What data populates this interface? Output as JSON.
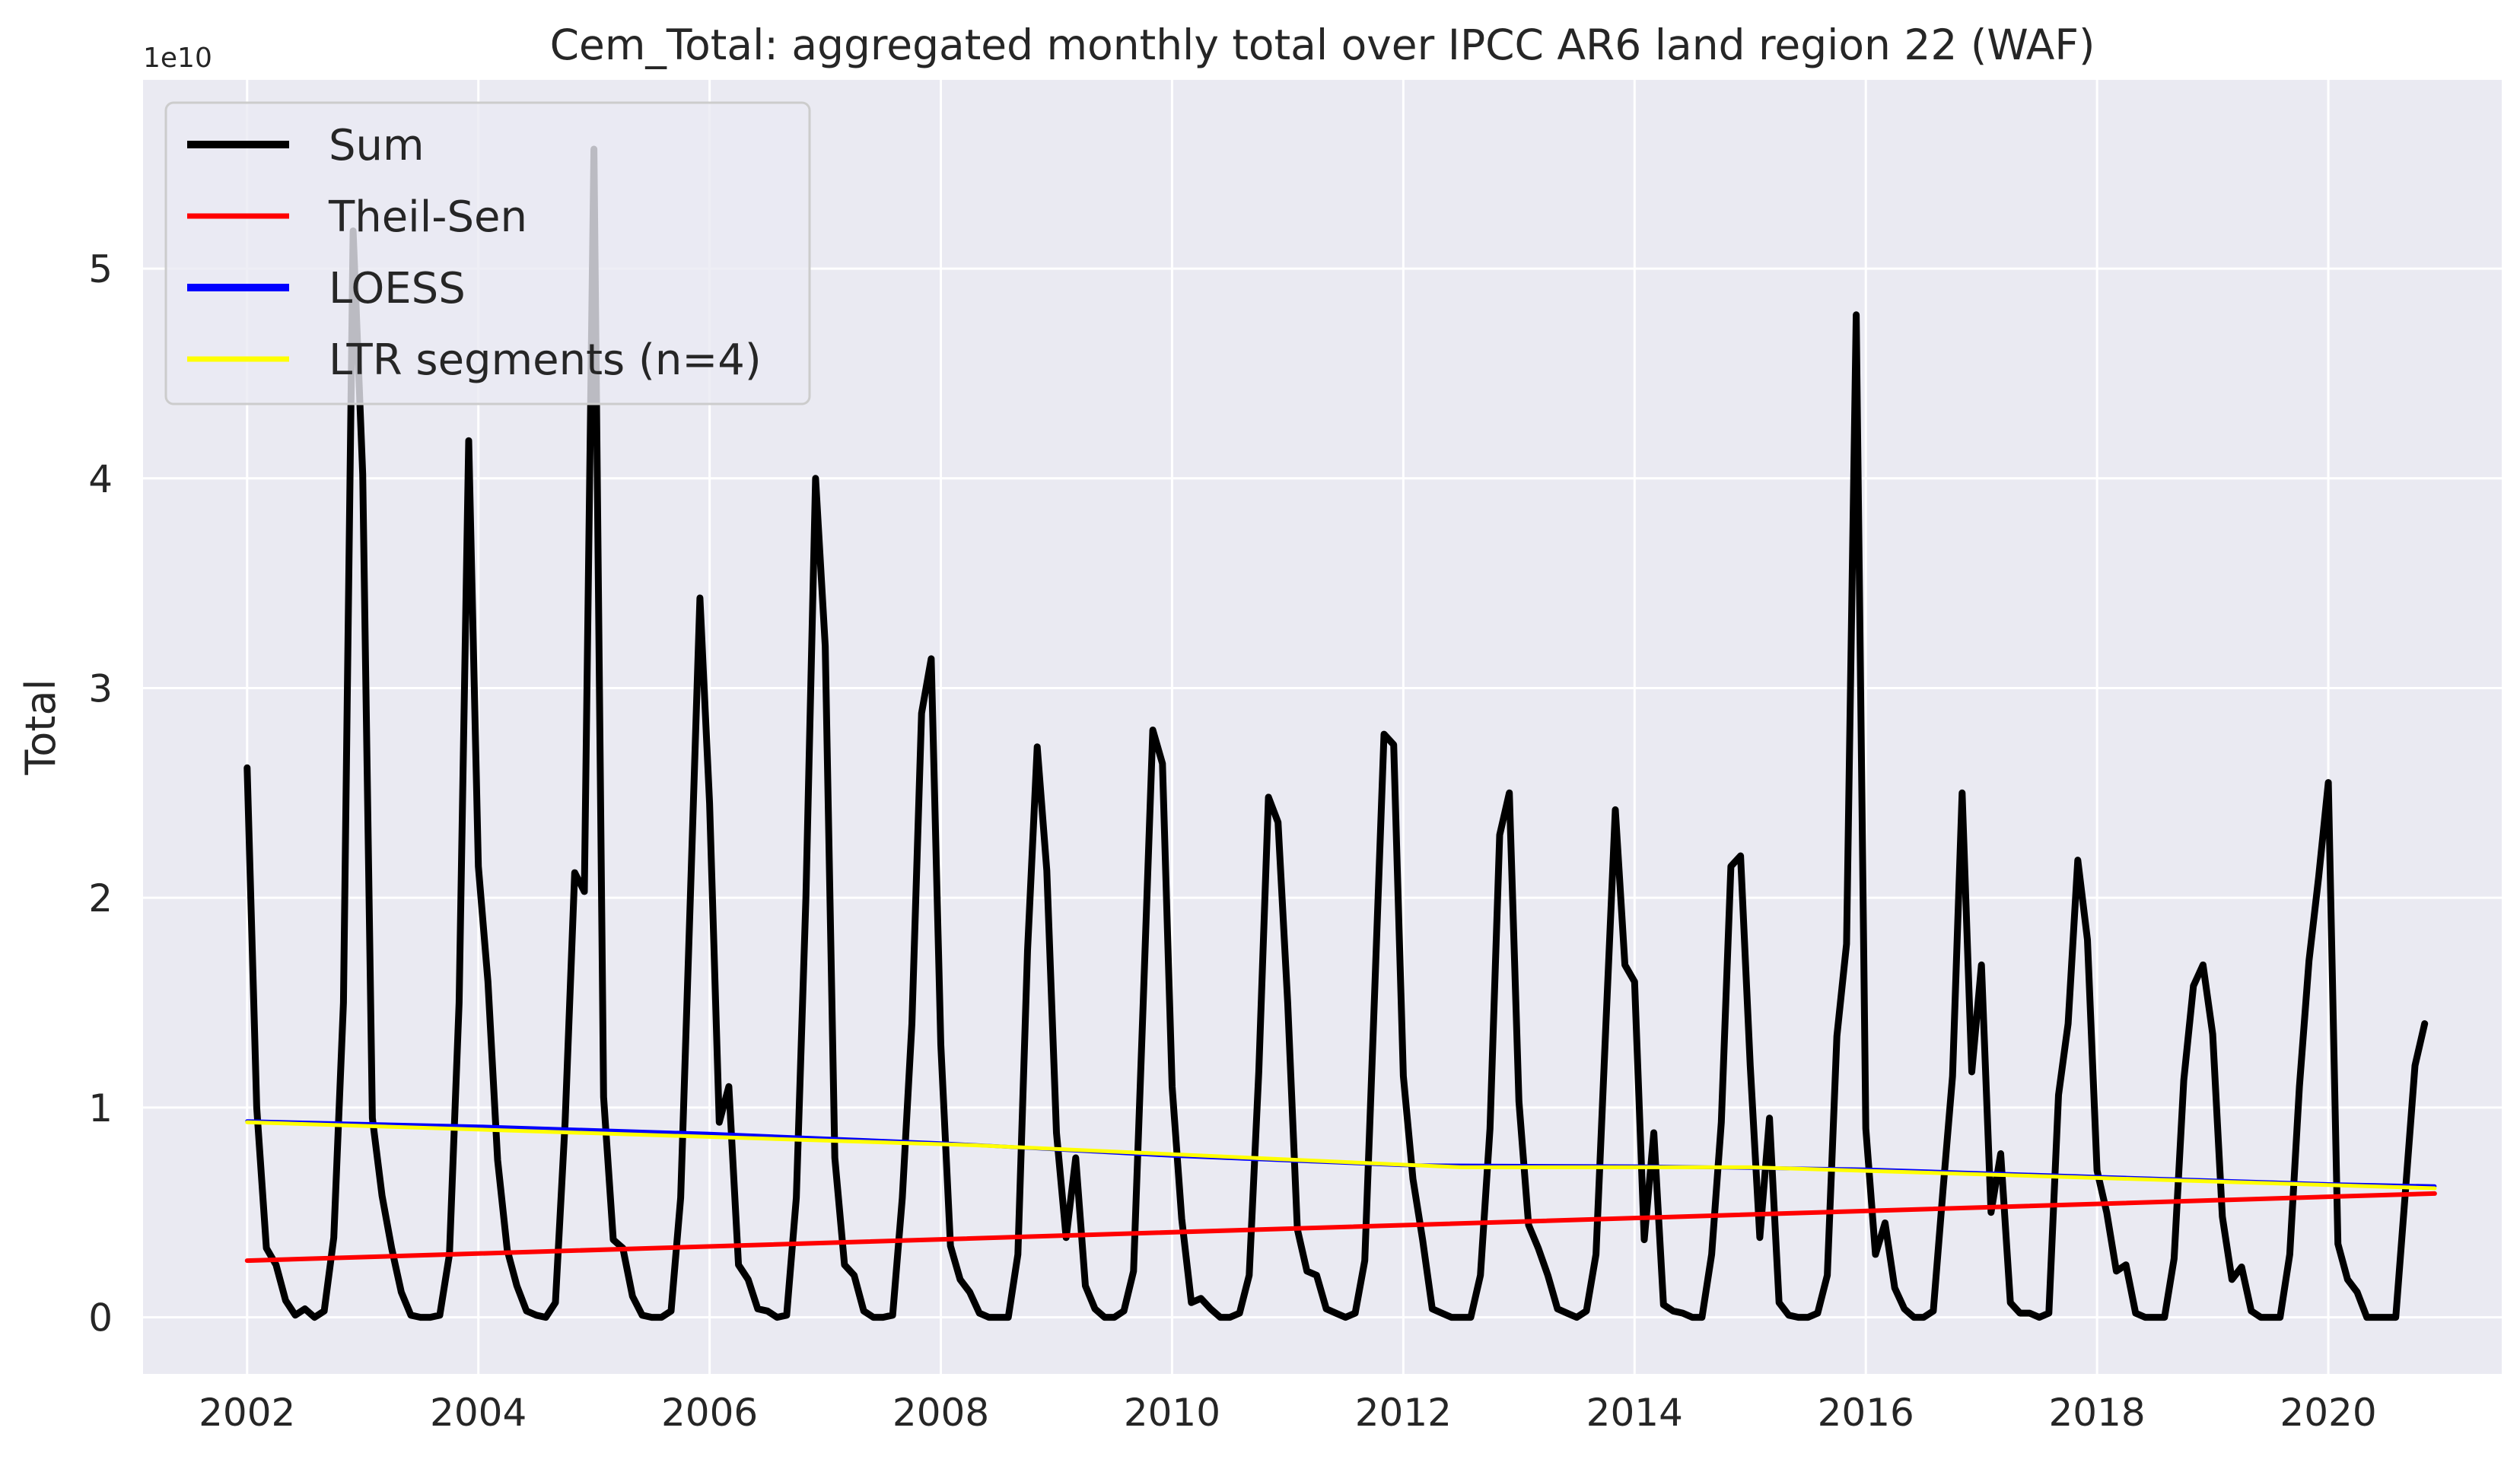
{
  "chart_data": {
    "type": "line",
    "title": "Cem_Total: aggregated monthly total over IPCC AR6 land region 22 (WAF)",
    "xlabel": "",
    "ylabel": "Total",
    "y_offset_label": "1e10",
    "xlim": [
      2001.1,
      2021.5
    ],
    "ylim": [
      -0.27,
      5.9
    ],
    "x_ticks": [
      2002,
      2004,
      2006,
      2008,
      2010,
      2012,
      2014,
      2016,
      2018,
      2020
    ],
    "x_tick_labels": [
      "2002",
      "2004",
      "2006",
      "2008",
      "2010",
      "2012",
      "2014",
      "2016",
      "2018",
      "2020"
    ],
    "y_ticks": [
      0,
      1,
      2,
      3,
      4,
      5
    ],
    "y_tick_labels": [
      "0",
      "1",
      "2",
      "3",
      "4",
      "5"
    ],
    "grid": true,
    "background": "#eaeaf2",
    "legend_position": "top-left",
    "legend": [
      {
        "label": "Sum",
        "color": "#000000"
      },
      {
        "label": "Theil-Sen",
        "color": "#ff0000"
      },
      {
        "label": "LOESS",
        "color": "#0000ff"
      },
      {
        "label": "LTR segments (n=4)",
        "color": "#ffff00"
      }
    ],
    "series": [
      {
        "name": "Sum",
        "color": "#000000",
        "start": 2002.0,
        "step": 0.0833333,
        "values": [
          2.62,
          1.0,
          0.33,
          0.25,
          0.08,
          0.01,
          0.04,
          0.0,
          0.03,
          0.38,
          1.5,
          5.18,
          4.02,
          0.95,
          0.58,
          0.33,
          0.12,
          0.01,
          0.0,
          0.0,
          0.01,
          0.3,
          1.5,
          4.18,
          2.15,
          1.6,
          0.75,
          0.32,
          0.15,
          0.03,
          0.01,
          0.0,
          0.07,
          0.93,
          2.12,
          2.03,
          5.57,
          1.05,
          0.37,
          0.33,
          0.1,
          0.01,
          0.0,
          0.0,
          0.03,
          0.57,
          2.0,
          3.43,
          2.45,
          0.93,
          1.1,
          0.25,
          0.18,
          0.04,
          0.03,
          0.0,
          0.01,
          0.57,
          2.0,
          4.0,
          3.2,
          0.76,
          0.25,
          0.2,
          0.03,
          0.0,
          0.0,
          0.01,
          0.57,
          1.4,
          2.88,
          3.14,
          1.3,
          0.34,
          0.18,
          0.12,
          0.02,
          0.0,
          0.0,
          0.0,
          0.3,
          1.75,
          2.72,
          2.13,
          0.88,
          0.38,
          0.76,
          0.15,
          0.04,
          0.0,
          0.0,
          0.03,
          0.22,
          1.5,
          2.8,
          2.64,
          1.1,
          0.47,
          0.07,
          0.09,
          0.04,
          0.0,
          0.0,
          0.02,
          0.2,
          1.17,
          2.48,
          2.36,
          1.5,
          0.42,
          0.22,
          0.2,
          0.04,
          0.02,
          0.0,
          0.02,
          0.27,
          1.52,
          2.78,
          2.73,
          1.15,
          0.66,
          0.37,
          0.04,
          0.02,
          0.0,
          0.0,
          0.0,
          0.2,
          0.9,
          2.3,
          2.5,
          1.03,
          0.44,
          0.33,
          0.2,
          0.04,
          0.02,
          0.0,
          0.03,
          0.3,
          1.37,
          2.42,
          1.68,
          1.6,
          0.37,
          0.88,
          0.06,
          0.03,
          0.02,
          0.0,
          0.0,
          0.3,
          0.93,
          2.15,
          2.2,
          1.2,
          0.38,
          0.95,
          0.07,
          0.01,
          0.0,
          0.0,
          0.02,
          0.2,
          1.34,
          1.78,
          4.78,
          0.9,
          0.3,
          0.45,
          0.14,
          0.04,
          0.0,
          0.0,
          0.03,
          0.6,
          1.15,
          2.5,
          1.17,
          1.68,
          0.5,
          0.78,
          0.07,
          0.02,
          0.02,
          0.0,
          0.02,
          1.06,
          1.4,
          2.18,
          1.8,
          0.7,
          0.5,
          0.22,
          0.25,
          0.02,
          0.0,
          0.0,
          0.0,
          0.28,
          1.13,
          1.58,
          1.68,
          1.35,
          0.48,
          0.18,
          0.24,
          0.03,
          0.0,
          0.0,
          0.0,
          0.3,
          1.1,
          1.7,
          2.1,
          2.55,
          0.35,
          0.18,
          0.12,
          0.0,
          0.0,
          0.0,
          0.0,
          0.6,
          1.2,
          1.4
        ]
      },
      {
        "name": "Theil-Sen",
        "color": "#ff0000",
        "x": [
          2002.0,
          2020.92
        ],
        "values": [
          0.27,
          0.59
        ]
      },
      {
        "name": "LOESS",
        "color": "#0000ff",
        "x": [
          2002.0,
          2004.0,
          2006.0,
          2008.0,
          2010.0,
          2012.0,
          2014.0,
          2016.0,
          2018.0,
          2020.0,
          2020.92
        ],
        "values": [
          0.935,
          0.91,
          0.875,
          0.83,
          0.77,
          0.725,
          0.72,
          0.705,
          0.67,
          0.635,
          0.625
        ]
      },
      {
        "name": "LTR segments (n=4)",
        "color": "#ffff00",
        "x": [
          2002.0,
          2008.3,
          2012.5,
          2015.0,
          2020.92
        ],
        "values": [
          0.93,
          0.82,
          0.715,
          0.715,
          0.615
        ]
      }
    ]
  }
}
